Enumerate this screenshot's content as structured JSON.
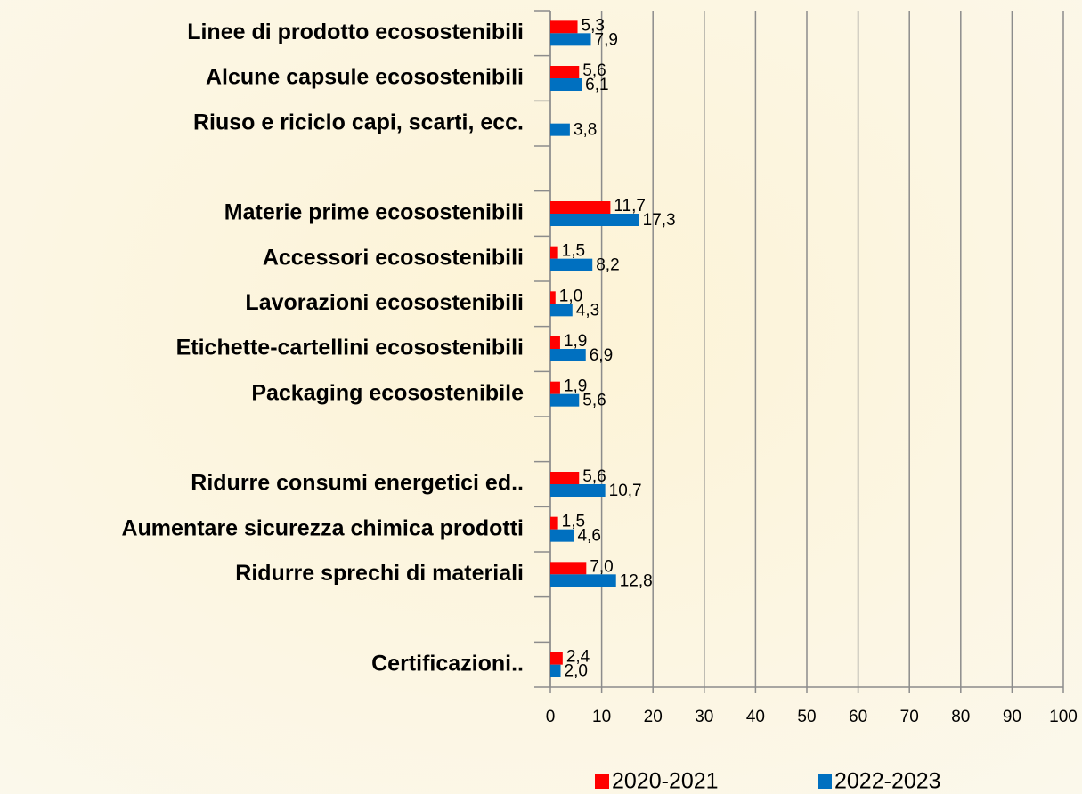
{
  "chart_data": {
    "type": "barh",
    "categories": [
      "Linee di prodotto ecosostenibili",
      "Alcune capsule ecosostenibili",
      "Riuso e riciclo capi, scarti, ecc.",
      null,
      "Materie prime ecosostenibili",
      "Accessori ecosostenibili",
      "Lavorazioni ecosostenibili",
      "Etichette-cartellini ecosostenibili",
      "Packaging ecosostenibile",
      null,
      "Ridurre consumi energetici ed..",
      "Aumentare sicurezza chimica prodotti",
      "Ridurre sprechi di materiali",
      null,
      "Certificazioni.."
    ],
    "series": [
      {
        "name": "2020-2021",
        "color": "#ff0000",
        "values": [
          5.3,
          5.6,
          null,
          null,
          11.7,
          1.5,
          1.0,
          1.9,
          1.9,
          null,
          5.6,
          1.5,
          7.0,
          null,
          2.4
        ],
        "value_labels": [
          "5,3",
          "5,6",
          null,
          null,
          "11,7",
          "1,5",
          "1,0",
          "1,9",
          "1,9",
          null,
          "5,6",
          "1,5",
          "7,0",
          null,
          "2,4"
        ]
      },
      {
        "name": "2022-2023",
        "color": "#0070c0",
        "values": [
          7.9,
          6.1,
          3.8,
          null,
          17.3,
          8.2,
          4.3,
          6.9,
          5.6,
          null,
          10.7,
          4.6,
          12.8,
          null,
          2.0
        ],
        "value_labels": [
          "7,9",
          "6,1",
          "3,8",
          null,
          "17,3",
          "8,2",
          "4,3",
          "6,9",
          "5,6",
          null,
          "10,7",
          "4,6",
          "12,8",
          null,
          "2,0"
        ]
      }
    ],
    "xlim": [
      0,
      100
    ],
    "xticks": [
      0,
      10,
      20,
      30,
      40,
      50,
      60,
      70,
      80,
      90,
      100
    ],
    "grid": true,
    "legend": "bottom"
  }
}
